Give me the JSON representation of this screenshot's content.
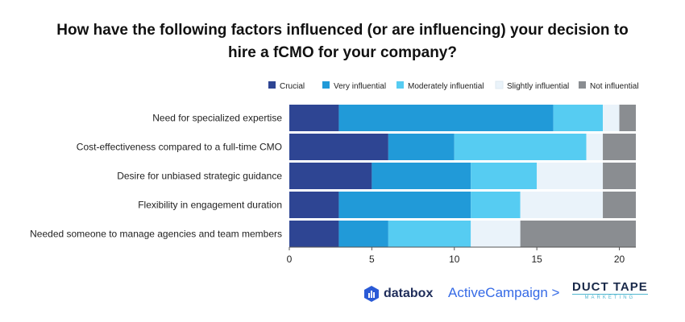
{
  "chart_data": {
    "type": "bar",
    "orientation": "horizontal",
    "stacked": true,
    "title": "How have the following factors influenced (or are influencing) your decision to hire a fCMO for your company?",
    "categories": [
      "Need for specialized expertise",
      "Cost-effectiveness compared to a full-time CMO",
      "Desire for unbiased strategic guidance",
      "Flexibility in engagement duration",
      "Needed someone to manage agencies and team members"
    ],
    "series": [
      {
        "name": "Crucial",
        "color": "#2e4593",
        "values": [
          3,
          6,
          5,
          3,
          3
        ]
      },
      {
        "name": "Very influential",
        "color": "#219ad8",
        "values": [
          13,
          4,
          6,
          8,
          3
        ]
      },
      {
        "name": "Moderately influential",
        "color": "#56ccf2",
        "values": [
          3,
          8,
          4,
          3,
          5
        ]
      },
      {
        "name": "Slightly influential",
        "color": "#eaf3fa",
        "values": [
          1,
          1,
          4,
          5,
          3
        ]
      },
      {
        "name": "Not influential",
        "color": "#8a8d91",
        "values": [
          1,
          2,
          2,
          2,
          7
        ]
      }
    ],
    "xlim": [
      0,
      21
    ],
    "xticks": [
      0,
      5,
      10,
      15,
      20
    ],
    "grid": false,
    "legend_position": "top"
  },
  "logos": {
    "databox": "databox",
    "activecampaign": "ActiveCampaign >",
    "ducttape_main": "DUCT TAPE",
    "ducttape_sub": "MARKETING"
  }
}
